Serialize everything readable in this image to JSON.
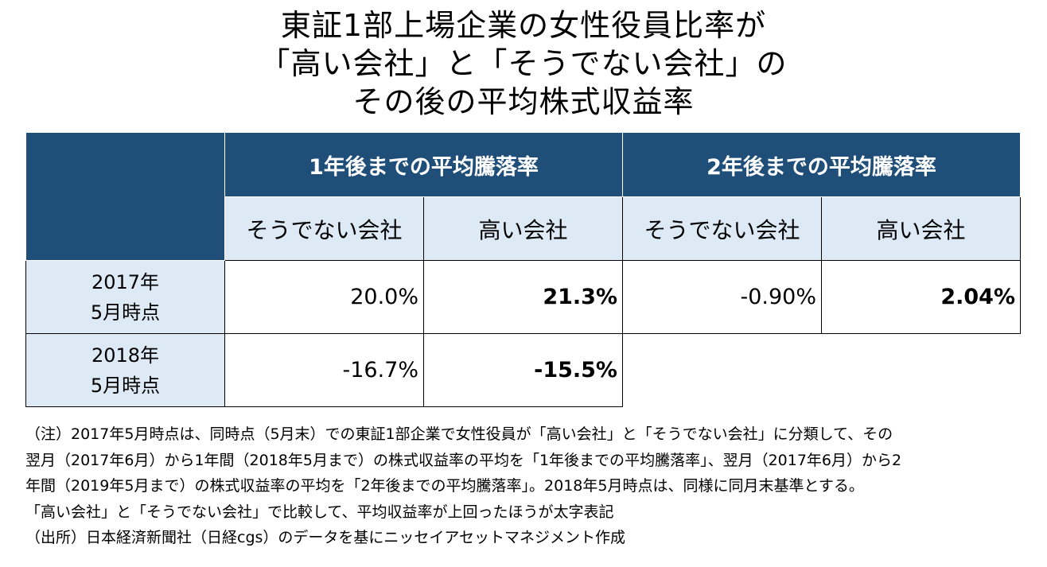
{
  "title": {
    "line1": "東証1部上場企業の女性役員比率が",
    "line2": "「高い会社」と「そうでない会社」の",
    "line3": "その後の平均株式収益率"
  },
  "chart_data": {
    "type": "table",
    "groups": [
      "1年後までの平均騰落率",
      "2年後までの平均騰落率"
    ],
    "subheaders": [
      "そうでない会社",
      "高い会社",
      "そうでない会社",
      "高い会社"
    ],
    "rows": [
      {
        "label_line1": "2017年",
        "label_line2": "5月時点",
        "values": [
          "20.0%",
          "21.3%",
          "-0.90%",
          "2.04%"
        ],
        "bold": [
          false,
          true,
          false,
          true
        ]
      },
      {
        "label_line1": "2018年",
        "label_line2": "5月時点",
        "values": [
          "-16.7%",
          "-15.5%"
        ],
        "bold": [
          false,
          true
        ]
      }
    ]
  },
  "notes": [
    "（注）2017年5月時点は、同時点（5月末）での東証1部企業で女性役員が「高い会社」と「そうでない会社」に分類して、その",
    "翌月（2017年6月）から1年間（2018年5月まで）の株式収益率の平均を「1年後までの平均騰落率」、翌月（2017年6月）から2",
    "年間（2019年5月まで）の株式収益率の平均を「2年後までの平均騰落率」。2018年5月時点は、同様に同月末基準とする。",
    "「高い会社」と「そうでない会社」で比較して、平均収益率が上回ったほうが太字表記",
    "（出所）日本経済新聞社（日経cgs）のデータを基にニッセイアセットマネジメント作成"
  ],
  "colors": {
    "header_dark": "#1f4e79",
    "header_light": "#dde9f5"
  }
}
